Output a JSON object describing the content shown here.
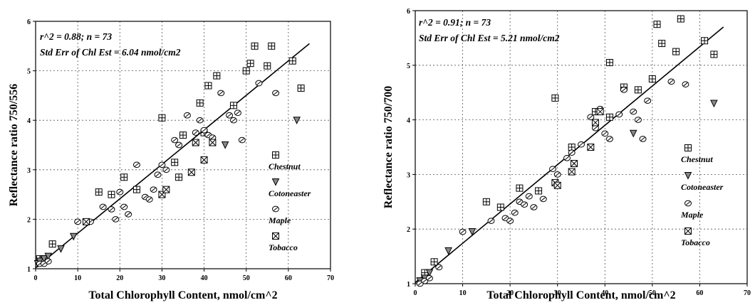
{
  "chart_data": [
    {
      "type": "scatter",
      "title": "",
      "xlabel": "Total Chlorophyll Content, nmol/cm^2",
      "ylabel": "Reflectance ratio 750/556",
      "xlim": [
        0,
        70
      ],
      "ylim": [
        1,
        6
      ],
      "xticks": [
        0,
        10,
        20,
        30,
        40,
        50,
        60,
        70
      ],
      "yticks": [
        1,
        2,
        3,
        4,
        5,
        6
      ],
      "grid": true,
      "legend_position": "right",
      "annotations": [
        "r^2 = 0.88; n = 73",
        "Std Err of Chl Est = 6.04 nmol/cm2"
      ],
      "fit_line": {
        "x": [
          0,
          65
        ],
        "y": [
          1.02,
          5.55
        ]
      },
      "series": [
        {
          "name": "Chestnut",
          "marker": "square-grid",
          "x": [
            1,
            2,
            4,
            15,
            18,
            21,
            24,
            30,
            33,
            34,
            35,
            39,
            40,
            41,
            43,
            47,
            50,
            51,
            52,
            55,
            56,
            61,
            63
          ],
          "y": [
            1.2,
            1.2,
            1.5,
            2.55,
            2.5,
            2.85,
            2.6,
            4.05,
            3.15,
            2.85,
            3.7,
            4.35,
            3.75,
            4.7,
            4.9,
            4.3,
            5.0,
            5.15,
            5.5,
            5.1,
            5.5,
            5.2,
            4.65
          ]
        },
        {
          "name": "Cotoneaster",
          "marker": "triangle",
          "x": [
            0.5,
            1,
            2,
            3,
            6,
            9,
            45,
            62
          ],
          "y": [
            1.1,
            1.15,
            1.2,
            1.25,
            1.4,
            1.65,
            3.5,
            4.0
          ]
        },
        {
          "name": "Maple",
          "marker": "circle-hatch",
          "x": [
            1,
            2,
            3,
            10,
            13,
            16,
            18,
            19,
            20,
            21,
            22,
            24,
            26,
            27,
            28,
            29,
            30,
            31,
            33,
            34,
            36,
            38,
            39,
            40,
            41,
            42,
            44,
            46,
            47,
            48,
            49,
            53,
            57
          ],
          "y": [
            1.1,
            1.1,
            1.15,
            1.95,
            1.95,
            2.25,
            2.2,
            2.0,
            2.55,
            2.25,
            2.1,
            3.1,
            2.45,
            2.4,
            2.6,
            2.9,
            3.1,
            3.0,
            3.6,
            3.5,
            4.1,
            3.75,
            4.0,
            3.8,
            3.7,
            3.65,
            4.55,
            4.1,
            4.0,
            4.15,
            3.6,
            4.75,
            4.55
          ]
        },
        {
          "name": "Tobacco",
          "marker": "square-x",
          "x": [
            12,
            30,
            31,
            37,
            38,
            40,
            42
          ],
          "y": [
            1.95,
            2.5,
            2.6,
            2.95,
            3.55,
            3.2,
            3.55
          ]
        }
      ]
    },
    {
      "type": "scatter",
      "title": "",
      "xlabel": "Total Chlorophyll Content, nmol/cm^2",
      "ylabel": "Reflectance ratio 750/700",
      "xlim": [
        0,
        70
      ],
      "ylim": [
        1,
        6
      ],
      "xticks": [
        0,
        10,
        20,
        30,
        40,
        50,
        60,
        70
      ],
      "yticks": [
        1,
        2,
        3,
        4,
        5,
        6
      ],
      "grid": true,
      "legend_position": "right",
      "annotations": [
        "r^2 = 0.91; n = 73",
        "Std Err of Chl Est = 5.21 nmol/cm2"
      ],
      "fit_line": {
        "x": [
          0,
          65
        ],
        "y": [
          1.02,
          5.7
        ]
      },
      "series": [
        {
          "name": "Chestnut",
          "marker": "square-grid",
          "x": [
            2,
            4,
            15,
            18,
            22,
            26,
            29.5,
            33,
            38,
            41,
            44,
            47,
            50,
            52,
            56,
            61,
            63
          ],
          "y": [
            1.2,
            1.4,
            2.5,
            2.4,
            2.75,
            2.7,
            4.4,
            3.5,
            4.15,
            4.05,
            4.6,
            4.55,
            4.75,
            5.4,
            5.85,
            5.45,
            5.2
          ],
          "extra": {
            "x": [
              41,
              51,
              55
            ],
            "y": [
              5.05,
              5.75,
              5.25
            ]
          }
        },
        {
          "name": "Cotoneaster",
          "marker": "triangle",
          "x": [
            1,
            2,
            3,
            7,
            12,
            46,
            63
          ],
          "y": [
            1.05,
            1.1,
            1.2,
            1.6,
            1.95,
            3.75,
            4.3
          ]
        },
        {
          "name": "Maple",
          "marker": "circle-hatch",
          "x": [
            1,
            2,
            3,
            5,
            10,
            16,
            19,
            20,
            21,
            22,
            23,
            24,
            25,
            27,
            29,
            30,
            32,
            33,
            35,
            37,
            38,
            39,
            40,
            41,
            43,
            44,
            46,
            47,
            48,
            49,
            54,
            57
          ],
          "y": [
            1.0,
            1.05,
            1.1,
            1.3,
            1.95,
            2.15,
            2.2,
            2.15,
            2.3,
            2.5,
            2.45,
            2.6,
            2.4,
            2.55,
            3.1,
            3.0,
            3.3,
            3.4,
            3.55,
            4.05,
            3.85,
            4.2,
            3.75,
            3.65,
            4.1,
            4.55,
            4.15,
            4.0,
            3.65,
            4.35,
            4.7,
            4.65
          ]
        },
        {
          "name": "Tobacco",
          "marker": "square-x",
          "x": [
            29.5,
            30,
            33,
            33.5,
            37,
            38,
            39
          ],
          "y": [
            2.85,
            2.8,
            3.05,
            3.2,
            3.5,
            3.95,
            4.15
          ]
        }
      ]
    }
  ]
}
